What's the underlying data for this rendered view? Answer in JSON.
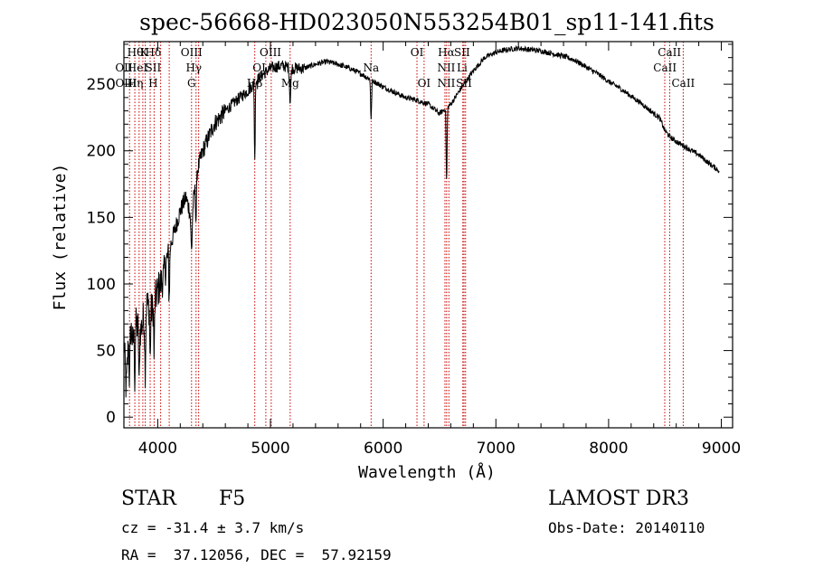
{
  "chart_data": {
    "type": "line",
    "title": "spec-56668-HD023050N553254B01_sp11-141.fits",
    "xlabel": "Wavelength (Å)",
    "ylabel": "Flux (relative)",
    "xlim": [
      3700,
      9100
    ],
    "ylim": [
      -8,
      282
    ],
    "x_ticks": [
      4000,
      5000,
      6000,
      7000,
      8000,
      9000
    ],
    "y_ticks": [
      0,
      50,
      100,
      150,
      200,
      250
    ],
    "grid": false,
    "line_color": "#000000",
    "marker_color": "#cc0000",
    "spectrum_anchors": [
      [
        3700,
        60
      ],
      [
        3720,
        20
      ],
      [
        3750,
        75
      ],
      [
        3780,
        55
      ],
      [
        3800,
        70
      ],
      [
        3850,
        65
      ],
      [
        3900,
        85
      ],
      [
        3950,
        80
      ],
      [
        4000,
        95
      ],
      [
        4050,
        105
      ],
      [
        4100,
        125
      ],
      [
        4150,
        140
      ],
      [
        4200,
        155
      ],
      [
        4250,
        165
      ],
      [
        4300,
        150
      ],
      [
        4350,
        185
      ],
      [
        4400,
        200
      ],
      [
        4450,
        210
      ],
      [
        4500,
        220
      ],
      [
        4600,
        230
      ],
      [
        4700,
        238
      ],
      [
        4800,
        245
      ],
      [
        4900,
        255
      ],
      [
        5000,
        262
      ],
      [
        5100,
        264
      ],
      [
        5200,
        262
      ],
      [
        5300,
        262
      ],
      [
        5400,
        265
      ],
      [
        5500,
        267
      ],
      [
        5600,
        265
      ],
      [
        5700,
        262
      ],
      [
        5800,
        258
      ],
      [
        5900,
        253
      ],
      [
        6000,
        248
      ],
      [
        6100,
        244
      ],
      [
        6200,
        240
      ],
      [
        6300,
        238
      ],
      [
        6400,
        235
      ],
      [
        6500,
        228
      ],
      [
        6600,
        235
      ],
      [
        6700,
        248
      ],
      [
        6800,
        260
      ],
      [
        6900,
        270
      ],
      [
        7000,
        274
      ],
      [
        7100,
        276
      ],
      [
        7200,
        277
      ],
      [
        7300,
        276
      ],
      [
        7400,
        275
      ],
      [
        7500,
        273
      ],
      [
        7600,
        271
      ],
      [
        7700,
        268
      ],
      [
        7800,
        263
      ],
      [
        7900,
        258
      ],
      [
        8000,
        252
      ],
      [
        8100,
        247
      ],
      [
        8200,
        241
      ],
      [
        8300,
        235
      ],
      [
        8400,
        228
      ],
      [
        8450,
        225
      ],
      [
        8500,
        215
      ],
      [
        8550,
        210
      ],
      [
        8600,
        207
      ],
      [
        8700,
        202
      ],
      [
        8800,
        197
      ],
      [
        8900,
        190
      ],
      [
        8980,
        185
      ]
    ],
    "absorption_features": [
      {
        "center": 3750,
        "depth": 45,
        "width": 6
      },
      {
        "center": 3797,
        "depth": 40,
        "width": 5
      },
      {
        "center": 3835,
        "depth": 45,
        "width": 5
      },
      {
        "center": 3889,
        "depth": 45,
        "width": 6
      },
      {
        "center": 3933,
        "depth": 40,
        "width": 5
      },
      {
        "center": 3968,
        "depth": 40,
        "width": 5
      },
      {
        "center": 4102,
        "depth": 35,
        "width": 6
      },
      {
        "center": 4300,
        "depth": 25,
        "width": 8
      },
      {
        "center": 4340,
        "depth": 30,
        "width": 6
      },
      {
        "center": 4861,
        "depth": 60,
        "width": 5
      },
      {
        "center": 5175,
        "depth": 25,
        "width": 8
      },
      {
        "center": 5893,
        "depth": 30,
        "width": 6
      },
      {
        "center": 6563,
        "depth": 55,
        "width": 6
      }
    ],
    "line_markers": [
      {
        "x": 3750
      },
      {
        "x": 3797
      },
      {
        "x": 3835
      },
      {
        "x": 3868
      },
      {
        "x": 3889
      },
      {
        "x": 3933
      },
      {
        "x": 3968
      },
      {
        "x": 4026
      },
      {
        "x": 4102
      },
      {
        "x": 4300
      },
      {
        "x": 4340
      },
      {
        "x": 4363
      },
      {
        "x": 4861
      },
      {
        "x": 4959
      },
      {
        "x": 5007
      },
      {
        "x": 5175
      },
      {
        "x": 5893
      },
      {
        "x": 6300
      },
      {
        "x": 6363
      },
      {
        "x": 6548
      },
      {
        "x": 6563
      },
      {
        "x": 6583
      },
      {
        "x": 6707
      },
      {
        "x": 6717
      },
      {
        "x": 6731
      },
      {
        "x": 8498
      },
      {
        "x": 8542
      },
      {
        "x": 8662
      }
    ],
    "line_labels": [
      {
        "x": 3800,
        "row": 0,
        "text": "Hθ"
      },
      {
        "x": 3880,
        "row": 0,
        "text": "K"
      },
      {
        "x": 3960,
        "row": 0,
        "text": "Hδ"
      },
      {
        "x": 4300,
        "row": 0,
        "text": "OIII"
      },
      {
        "x": 5000,
        "row": 0,
        "text": "OIII"
      },
      {
        "x": 6300,
        "row": 0,
        "text": "OI"
      },
      {
        "x": 6560,
        "row": 0,
        "text": "Hα"
      },
      {
        "x": 6700,
        "row": 0,
        "text": "SII"
      },
      {
        "x": 8540,
        "row": 0,
        "text": "CaII"
      },
      {
        "x": 3700,
        "row": 1,
        "text": "OII"
      },
      {
        "x": 3820,
        "row": 1,
        "text": "HeI"
      },
      {
        "x": 3960,
        "row": 1,
        "text": "SII"
      },
      {
        "x": 4320,
        "row": 1,
        "text": "Hγ"
      },
      {
        "x": 4900,
        "row": 1,
        "text": "OI"
      },
      {
        "x": 5893,
        "row": 1,
        "text": "Na"
      },
      {
        "x": 6560,
        "row": 1,
        "text": "NII"
      },
      {
        "x": 6700,
        "row": 1,
        "text": "Li"
      },
      {
        "x": 8500,
        "row": 1,
        "text": "CaII"
      },
      {
        "x": 3720,
        "row": 2,
        "text": "OIII"
      },
      {
        "x": 3800,
        "row": 2,
        "text": "Hη"
      },
      {
        "x": 3960,
        "row": 2,
        "text": "H"
      },
      {
        "x": 4300,
        "row": 2,
        "text": "G"
      },
      {
        "x": 4860,
        "row": 2,
        "text": "Hβ"
      },
      {
        "x": 5175,
        "row": 2,
        "text": "Mg"
      },
      {
        "x": 6363,
        "row": 2,
        "text": "OI"
      },
      {
        "x": 6560,
        "row": 2,
        "text": "NII"
      },
      {
        "x": 6717,
        "row": 2,
        "text": "SII"
      },
      {
        "x": 8662,
        "row": 2,
        "text": "CaII"
      }
    ]
  },
  "info": {
    "object_class": "STAR",
    "subclass": "F5",
    "survey": "LAMOST DR3",
    "redshift_line": "cz = -31.4 ± 3.7 km/s",
    "obs_date_line": "Obs-Date: 20140110",
    "coords_line": "RA =  37.12056, DEC =  57.92159"
  }
}
